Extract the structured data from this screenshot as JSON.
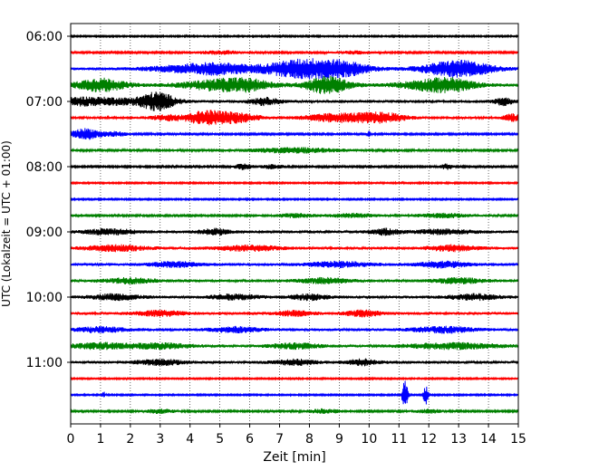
{
  "chart_data": {
    "type": "line",
    "subtype": "helicorder-seismogram",
    "xlabel": "Zeit  [min]",
    "ylabel": "UTC (Lokalzeit = UTC + 01:00)",
    "xlim": [
      0,
      15
    ],
    "x_ticks": [
      "0",
      "1",
      "2",
      "3",
      "4",
      "5",
      "6",
      "7",
      "8",
      "9",
      "10",
      "11",
      "12",
      "13",
      "14",
      "15"
    ],
    "y_ticks": [
      "06:00",
      "07:00",
      "08:00",
      "09:00",
      "10:00",
      "11:00"
    ],
    "y_tick_rows": [
      0,
      4,
      8,
      12,
      16,
      20
    ],
    "vertical_grid": "dotted, every 1 min",
    "row_interval_min": 15,
    "row_start": "06:00",
    "colors": [
      "#000000",
      "#ff0000",
      "#0000ff",
      "#008000"
    ],
    "series": [
      {
        "start": "06:00",
        "noise": 0.5,
        "events": []
      },
      {
        "start": "06:15",
        "noise": 0.6,
        "events": [
          [
            5.0,
            0.8,
            1.2
          ],
          [
            9.5,
            0.6,
            1.0
          ]
        ]
      },
      {
        "start": "06:30",
        "noise": 1.0,
        "events": [
          [
            4.2,
            1.5,
            2.5
          ],
          [
            5.0,
            1.0,
            2.0
          ],
          [
            8.0,
            1.5,
            7.0
          ],
          [
            9.3,
            0.7,
            2.0
          ],
          [
            12.6,
            1.0,
            3.0
          ],
          [
            13.3,
            1.0,
            3.5
          ]
        ]
      },
      {
        "start": "06:45",
        "noise": 1.2,
        "events": [
          [
            1.0,
            0.8,
            4.5
          ],
          [
            5.0,
            1.2,
            3.5
          ],
          [
            6.0,
            0.8,
            2.5
          ],
          [
            8.6,
            0.7,
            6.0
          ],
          [
            12.0,
            1.0,
            3.0
          ],
          [
            12.8,
            0.8,
            3.0
          ]
        ]
      },
      {
        "start": "07:00",
        "noise": 1.0,
        "events": [
          [
            0.3,
            0.8,
            2.5
          ],
          [
            1.5,
            0.8,
            2.0
          ],
          [
            2.9,
            0.6,
            6.5
          ],
          [
            6.5,
            0.5,
            2.5
          ],
          [
            14.5,
            0.3,
            2.5
          ]
        ]
      },
      {
        "start": "07:15",
        "noise": 0.8,
        "events": [
          [
            3.3,
            0.6,
            2.0
          ],
          [
            4.5,
            0.6,
            4.5
          ],
          [
            5.5,
            0.8,
            3.5
          ],
          [
            9.0,
            1.2,
            3.0
          ],
          [
            10.5,
            0.8,
            3.0
          ],
          [
            14.8,
            0.3,
            2.5
          ]
        ]
      },
      {
        "start": "07:30",
        "noise": 0.6,
        "events": [
          [
            0.5,
            0.5,
            4.0
          ],
          [
            1.5,
            0.4,
            1.5
          ],
          [
            10.0,
            0.05,
            3.0
          ]
        ]
      },
      {
        "start": "07:45",
        "noise": 0.7,
        "events": [
          [
            7.5,
            1.5,
            1.8
          ]
        ]
      },
      {
        "start": "08:00",
        "noise": 0.6,
        "events": [
          [
            5.8,
            0.3,
            2.0
          ],
          [
            6.8,
            0.4,
            1.5
          ],
          [
            12.6,
            0.2,
            2.0
          ]
        ]
      },
      {
        "start": "08:15",
        "noise": 0.5,
        "events": []
      },
      {
        "start": "08:30",
        "noise": 0.5,
        "events": []
      },
      {
        "start": "08:45",
        "noise": 0.6,
        "events": [
          [
            7.5,
            0.8,
            1.3
          ],
          [
            9.5,
            0.8,
            1.5
          ],
          [
            12.5,
            1.0,
            1.5
          ]
        ]
      },
      {
        "start": "09:00",
        "noise": 1.0,
        "events": [
          [
            1.3,
            0.8,
            2.0
          ],
          [
            4.8,
            0.5,
            2.0
          ],
          [
            10.5,
            0.5,
            2.0
          ],
          [
            12.5,
            1.0,
            1.5
          ]
        ]
      },
      {
        "start": "09:15",
        "noise": 1.0,
        "events": [
          [
            1.5,
            1.0,
            2.0
          ],
          [
            6.0,
            1.0,
            1.8
          ],
          [
            12.8,
            0.8,
            2.0
          ]
        ]
      },
      {
        "start": "09:30",
        "noise": 1.0,
        "events": [
          [
            3.5,
            0.8,
            1.8
          ],
          [
            9.0,
            1.0,
            1.8
          ],
          [
            12.5,
            0.8,
            2.0
          ]
        ]
      },
      {
        "start": "09:45",
        "noise": 1.0,
        "events": [
          [
            2.0,
            0.8,
            1.8
          ],
          [
            8.5,
            0.8,
            1.8
          ],
          [
            13.0,
            0.8,
            1.8
          ]
        ]
      },
      {
        "start": "10:00",
        "noise": 1.0,
        "events": [
          [
            1.5,
            0.8,
            2.0
          ],
          [
            5.5,
            0.8,
            1.8
          ],
          [
            8.0,
            0.6,
            2.0
          ],
          [
            13.5,
            0.8,
            2.0
          ]
        ]
      },
      {
        "start": "10:15",
        "noise": 1.0,
        "events": [
          [
            3.0,
            0.8,
            1.8
          ],
          [
            7.5,
            0.6,
            1.8
          ],
          [
            9.8,
            0.6,
            2.0
          ]
        ]
      },
      {
        "start": "10:30",
        "noise": 1.0,
        "events": [
          [
            1.0,
            0.8,
            1.8
          ],
          [
            5.5,
            0.8,
            1.8
          ],
          [
            12.5,
            1.0,
            2.0
          ]
        ]
      },
      {
        "start": "10:45",
        "noise": 1.0,
        "events": [
          [
            1.0,
            1.0,
            2.0
          ],
          [
            3.0,
            1.0,
            1.8
          ],
          [
            7.5,
            0.8,
            1.8
          ],
          [
            12.8,
            1.5,
            2.0
          ]
        ]
      },
      {
        "start": "11:00",
        "noise": 1.0,
        "events": [
          [
            3.0,
            0.8,
            1.8
          ],
          [
            7.5,
            0.7,
            1.8
          ],
          [
            9.8,
            0.5,
            2.0
          ]
        ]
      },
      {
        "start": "11:15",
        "noise": 0.5,
        "events": []
      },
      {
        "start": "11:30",
        "noise": 0.5,
        "events": [
          [
            1.1,
            0.06,
            2.5
          ],
          [
            11.2,
            0.1,
            10.0
          ],
          [
            11.9,
            0.08,
            7.5
          ]
        ]
      },
      {
        "start": "11:45",
        "noise": 0.6,
        "events": [
          [
            3.0,
            0.5,
            1.5
          ],
          [
            8.5,
            0.6,
            1.5
          ],
          [
            12.0,
            0.5,
            1.3
          ]
        ]
      }
    ]
  }
}
